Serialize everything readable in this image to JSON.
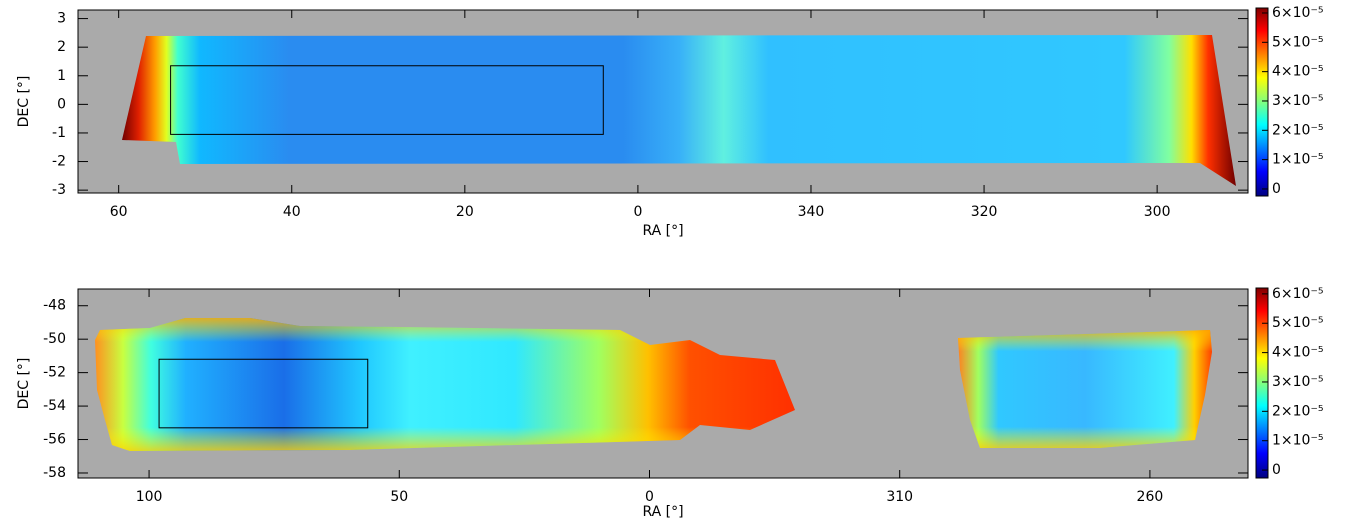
{
  "chart_data": [
    {
      "type": "heatmap",
      "xlabel": "RA [°]",
      "ylabel": "DEC [°]",
      "xlim": [
        64.7,
        289.5
      ],
      "xticks": [
        60,
        40,
        20,
        0,
        340,
        320,
        300
      ],
      "ylim": [
        -3.1,
        3.3
      ],
      "yticks": [
        -3,
        -2,
        -1,
        0,
        1,
        2,
        3
      ],
      "colorbar": {
        "lim": [
          -2.4e-06,
          6.17e-05
        ],
        "ticks": [
          0,
          {
            "value": 1e-05,
            "label": "1×10⁻⁵"
          },
          {
            "value": 2e-05,
            "label": "2×10⁻⁵"
          },
          {
            "value": 3e-05,
            "label": "3×10⁻⁵"
          },
          {
            "value": 4e-05,
            "label": "4×10⁻⁵"
          },
          {
            "value": 5e-05,
            "label": "5×10⁻⁵"
          },
          {
            "value": 6e-05,
            "label": "6×10⁻⁵"
          }
        ]
      },
      "box": {
        "x": [
          54,
          4
        ],
        "y": [
          -1.05,
          1.35
        ]
      }
    },
    {
      "type": "heatmap",
      "xlabel": "RA [°]",
      "ylabel": "DEC [°]",
      "xlim": [
        114.2,
        240.4
      ],
      "xticks": [
        100,
        50,
        0,
        310,
        260
      ],
      "ylim": [
        -58.3,
        -47.0
      ],
      "yticks": [
        -58,
        -56,
        -54,
        -52,
        -50,
        -48
      ],
      "colorbar": {
        "lim": [
          -2.7e-06,
          6.2e-05
        ],
        "ticks": [
          0,
          {
            "value": 1e-05,
            "label": "1×10⁻⁵"
          },
          {
            "value": 2e-05,
            "label": "2×10⁻⁵"
          },
          {
            "value": 3e-05,
            "label": "3×10⁻⁵"
          },
          {
            "value": 4e-05,
            "label": "4×10⁻⁵"
          },
          {
            "value": 5e-05,
            "label": "5×10⁻⁵"
          },
          {
            "value": 6e-05,
            "label": "6×10⁻⁵"
          }
        ]
      },
      "box": {
        "x": [
          98,
          56.3
        ],
        "y": [
          -55.3,
          -51.2
        ]
      }
    }
  ]
}
